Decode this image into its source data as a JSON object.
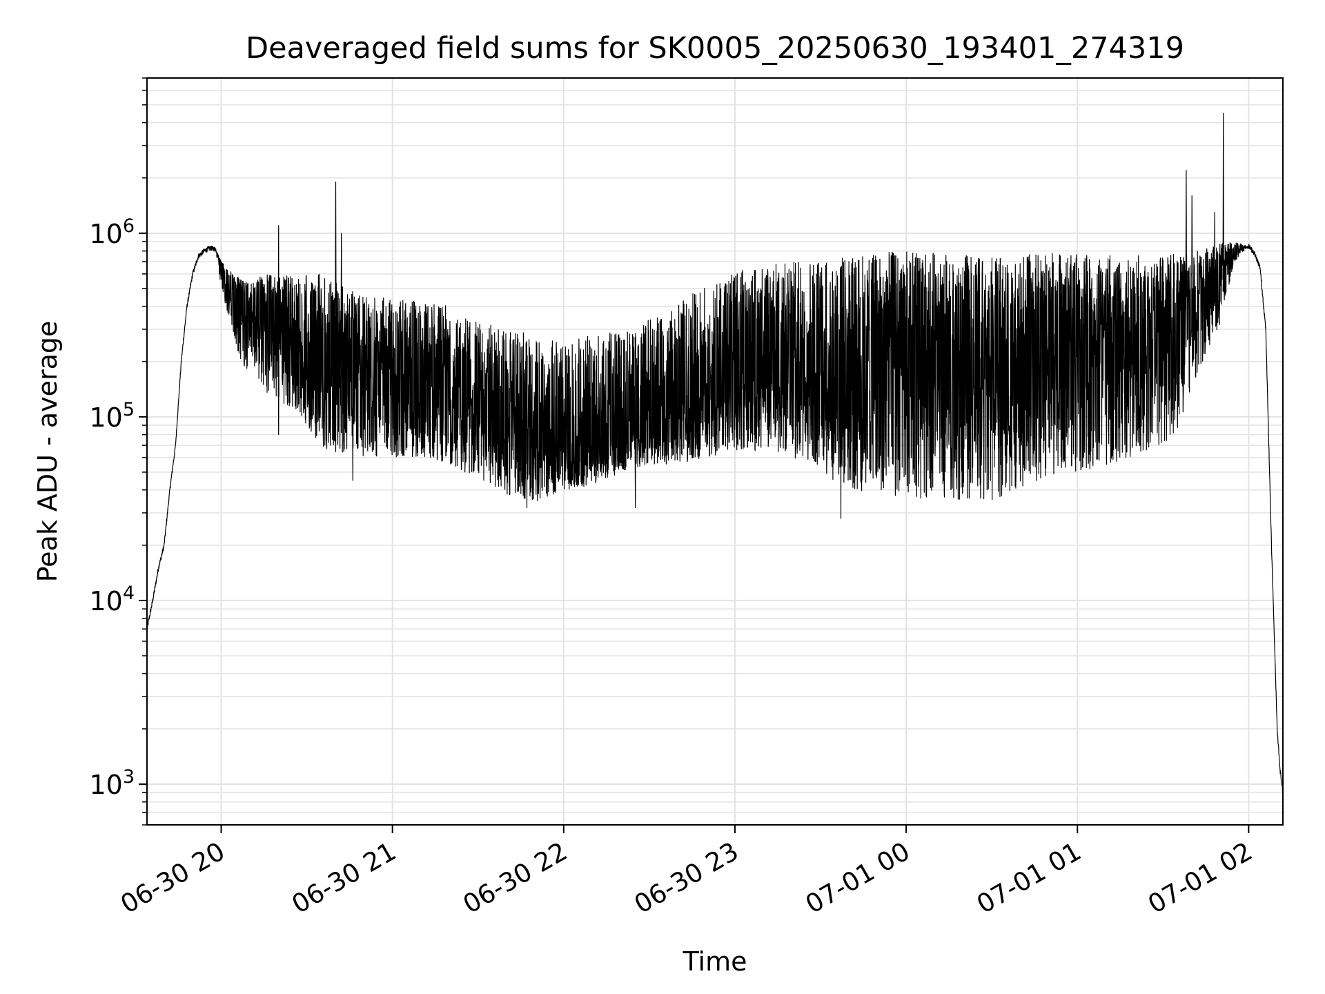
{
  "chart_data": {
    "type": "line",
    "title": "Deaveraged field sums for SK0005_20250630_193401_274319",
    "xlabel": "Time",
    "ylabel": "Peak ADU - average",
    "xscale": "time",
    "yscale": "log",
    "xlim": [
      "2025-06-30 19:34",
      "2025-07-01 02:12"
    ],
    "ylim": [
      600,
      7000000
    ],
    "grid": true,
    "legend": "none",
    "colors": {
      "line": "#000000",
      "grid": "#e3e3e3",
      "axes": "#000000"
    },
    "x_ticks": [
      {
        "value": "2025-06-30 20:00",
        "label": "06-30 20"
      },
      {
        "value": "2025-06-30 21:00",
        "label": "06-30 21"
      },
      {
        "value": "2025-06-30 22:00",
        "label": "06-30 22"
      },
      {
        "value": "2025-06-30 23:00",
        "label": "06-30 23"
      },
      {
        "value": "2025-07-01 00:00",
        "label": "07-01 00"
      },
      {
        "value": "2025-07-01 01:00",
        "label": "07-01 01"
      },
      {
        "value": "2025-07-01 02:00",
        "label": "07-01 02"
      }
    ],
    "y_ticks": [
      {
        "value": 1000,
        "base": "10",
        "exp": "3"
      },
      {
        "value": 10000,
        "base": "10",
        "exp": "4"
      },
      {
        "value": 100000,
        "base": "10",
        "exp": "5"
      },
      {
        "value": 1000000,
        "base": "10",
        "exp": "6"
      }
    ],
    "series": [
      {
        "x": [
          "2025-06-30 19:34",
          "2025-06-30 19:36",
          "2025-06-30 19:38",
          "2025-06-30 19:40",
          "2025-06-30 19:42",
          "2025-06-30 19:44",
          "2025-06-30 19:46",
          "2025-06-30 19:48",
          "2025-06-30 19:50",
          "2025-06-30 19:52",
          "2025-06-30 19:54",
          "2025-06-30 19:56",
          "2025-06-30 19:58",
          "2025-06-30 20:00",
          "2025-06-30 20:02",
          "2025-06-30 20:05",
          "2025-06-30 20:08",
          "2025-06-30 20:11",
          "2025-06-30 20:15",
          "2025-06-30 20:20",
          "2025-06-30 20:25",
          "2025-06-30 20:30",
          "2025-06-30 20:35",
          "2025-06-30 20:40",
          "2025-06-30 20:45",
          "2025-06-30 20:50",
          "2025-06-30 21:00",
          "2025-06-30 21:10",
          "2025-06-30 21:20",
          "2025-06-30 21:30",
          "2025-06-30 21:40",
          "2025-06-30 21:50",
          "2025-06-30 22:00",
          "2025-06-30 22:10",
          "2025-06-30 22:20",
          "2025-06-30 22:30",
          "2025-06-30 22:40",
          "2025-06-30 22:50",
          "2025-06-30 23:00",
          "2025-06-30 23:10",
          "2025-06-30 23:20",
          "2025-06-30 23:30",
          "2025-06-30 23:40",
          "2025-06-30 23:50",
          "2025-07-01 00:00",
          "2025-07-01 00:10",
          "2025-07-01 00:20",
          "2025-07-01 00:30",
          "2025-07-01 00:40",
          "2025-07-01 00:50",
          "2025-07-01 01:00",
          "2025-07-01 01:10",
          "2025-07-01 01:20",
          "2025-07-01 01:30",
          "2025-07-01 01:36",
          "2025-07-01 01:40",
          "2025-07-01 01:45",
          "2025-07-01 01:50",
          "2025-07-01 01:55",
          "2025-07-01 02:00",
          "2025-07-01 02:02",
          "2025-07-01 02:04",
          "2025-07-01 02:06",
          "2025-07-01 02:08",
          "2025-07-01 02:10",
          "2025-07-01 02:11",
          "2025-07-01 02:12"
        ],
        "y": [
          7000,
          10000,
          15000,
          20000,
          40000,
          70000,
          200000,
          400000,
          600000,
          750000,
          800000,
          830000,
          820000,
          700000,
          550000,
          450000,
          400000,
          350000,
          380000,
          300000,
          250000,
          230000,
          200000,
          250000,
          180000,
          160000,
          150000,
          140000,
          130000,
          110000,
          95000,
          75000,
          65000,
          70000,
          80000,
          95000,
          110000,
          130000,
          150000,
          170000,
          180000,
          190000,
          200000,
          210000,
          220000,
          210000,
          200000,
          190000,
          200000,
          220000,
          230000,
          240000,
          270000,
          300000,
          350000,
          400000,
          500000,
          650000,
          800000,
          850000,
          780000,
          650000,
          300000,
          20000,
          2000,
          1200,
          900
        ],
        "low": [
          7000,
          10000,
          15000,
          20000,
          40000,
          70000,
          200000,
          400000,
          600000,
          750000,
          800000,
          830000,
          820000,
          500000,
          380000,
          250000,
          180000,
          180000,
          140000,
          120000,
          110000,
          90000,
          70000,
          60000,
          65000,
          60000,
          60000,
          60000,
          55000,
          45000,
          38000,
          34000,
          40000,
          42000,
          50000,
          55000,
          55000,
          60000,
          65000,
          65000,
          60000,
          50000,
          40000,
          38000,
          36000,
          36000,
          35000,
          35000,
          40000,
          45000,
          50000,
          55000,
          60000,
          70000,
          90000,
          140000,
          220000,
          320000,
          700000,
          850000,
          780000,
          650000,
          300000,
          20000,
          2000,
          1200,
          900
        ],
        "high": [
          7000,
          10000,
          15000,
          20000,
          40000,
          70000,
          200000,
          400000,
          600000,
          750000,
          800000,
          830000,
          820000,
          700000,
          650000,
          600000,
          550000,
          550000,
          600000,
          600000,
          600000,
          600000,
          600000,
          550000,
          500000,
          450000,
          450000,
          420000,
          400000,
          330000,
          300000,
          280000,
          250000,
          280000,
          300000,
          350000,
          420000,
          520000,
          620000,
          680000,
          700000,
          720000,
          750000,
          780000,
          800000,
          780000,
          760000,
          740000,
          760000,
          780000,
          780000,
          760000,
          760000,
          750000,
          780000,
          800000,
          820000,
          880000,
          900000,
          850000,
          780000,
          650000,
          300000,
          20000,
          2000,
          1200,
          900
        ],
        "spikes": [
          {
            "x": "2025-06-30 20:20",
            "y": 1100000
          },
          {
            "x": "2025-06-30 20:20",
            "y": 80000
          },
          {
            "x": "2025-06-30 20:40",
            "y": 1900000
          },
          {
            "x": "2025-06-30 20:42",
            "y": 1000000
          },
          {
            "x": "2025-06-30 20:46",
            "y": 45000
          },
          {
            "x": "2025-06-30 21:47",
            "y": 32000
          },
          {
            "x": "2025-06-30 22:25",
            "y": 32000
          },
          {
            "x": "2025-06-30 23:37",
            "y": 28000
          },
          {
            "x": "2025-07-01 01:38",
            "y": 2200000
          },
          {
            "x": "2025-07-01 01:40",
            "y": 1600000
          },
          {
            "x": "2025-07-01 01:51",
            "y": 4500000
          },
          {
            "x": "2025-07-01 01:48",
            "y": 1300000
          }
        ]
      }
    ]
  }
}
